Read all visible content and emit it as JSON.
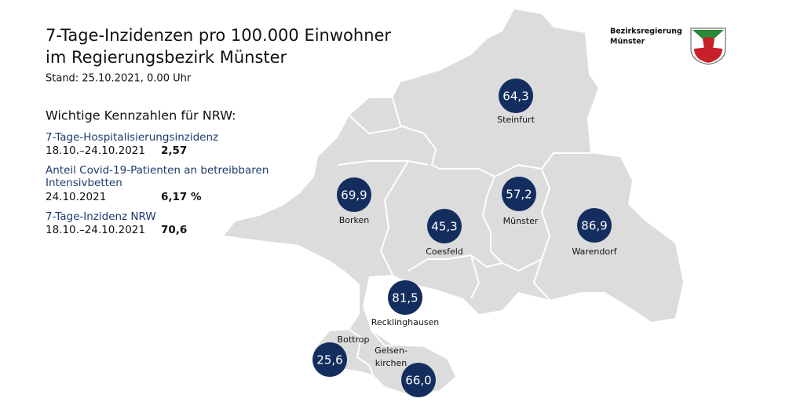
{
  "header": {
    "title_lines": [
      "7-Tage-Inzidenzen pro 100.000 Einwohner",
      "im Regierungsbezirk Münster"
    ],
    "stand": "Stand: 25.10.2021, 0.00 Uhr"
  },
  "key_figures": {
    "heading": "Wichtige Kennzahlen für NRW:",
    "items": [
      {
        "label_lines": [
          "7-Tage-Hospitalisierungsinzidenz"
        ],
        "date": "18.10.–24.10.2021",
        "value": "2,57"
      },
      {
        "label_lines": [
          "Anteil Covid-19-Patienten an betreibbaren",
          "Intensivbetten"
        ],
        "date": "24.10.2021",
        "value": "6,17 %"
      },
      {
        "label_lines": [
          "7-Tage-Inzidenz NRW"
        ],
        "date": "18.10.–24.10.2021",
        "value": "70,6"
      }
    ]
  },
  "districts": [
    {
      "name_lines": [
        "Steinfurt"
      ],
      "value": "64,3"
    },
    {
      "name_lines": [
        "Borken"
      ],
      "value": "69,9"
    },
    {
      "name_lines": [
        "Coesfeld"
      ],
      "value": "45,3"
    },
    {
      "name_lines": [
        "Münster"
      ],
      "value": "57,2"
    },
    {
      "name_lines": [
        "Warendorf"
      ],
      "value": "86,9"
    },
    {
      "name_lines": [
        "Recklinghausen"
      ],
      "value": "81,5"
    },
    {
      "name_lines": [
        "Bottrop"
      ],
      "value": "25,6"
    },
    {
      "name_lines": [
        "Gelsen-",
        "kirchen"
      ],
      "value": "66,0"
    }
  ],
  "logo": {
    "lines": [
      "Bezirksregierung",
      "Münster"
    ]
  }
}
